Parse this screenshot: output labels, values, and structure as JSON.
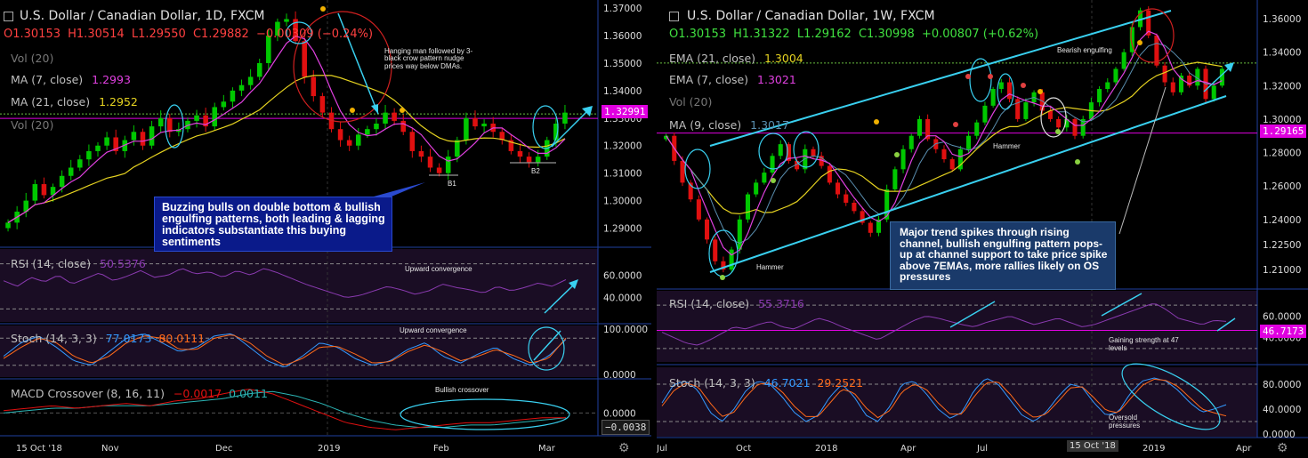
{
  "left": {
    "title": "U.S. Dollar / Canadian Dollar, 1D, FXCM",
    "open": "O1.30153",
    "high": "H1.30514",
    "low": "L1.29550",
    "close": "C1.29882",
    "change": "−0.00309 (−0.24%)",
    "vol_top": "Vol (20)",
    "ma7_label": "MA (7, close)",
    "ma7_value": "1.2993",
    "ma21_label": "MA (21, close)",
    "ma21_value": "1.2952",
    "vol_mid": "Vol (20)",
    "price_ticks": [
      "1.37000",
      "1.36000",
      "1.35000",
      "1.34000",
      "1.33000",
      "1.32000",
      "1.31000",
      "1.30000",
      "1.29000"
    ],
    "current_price": "1.32991",
    "ann_hanging": "Hanging man followed by 3-black crow pattern nudge prices way below DMAs.",
    "ann_b1": "B1",
    "ann_b2": "B2",
    "callout": "Buzzing bulls on double bottom & bullish engulfing patterns, both leading & lagging indicators substantiate this buying sentiments",
    "rsi_label": "RSI (14, close)",
    "rsi_value": "50.5376",
    "rsi_ticks": [
      "60.0000",
      "40.0000"
    ],
    "rsi_ann": "Upward convergence",
    "stoch_label": "Stoch (14, 3, 3)",
    "stoch_k": "77.0173",
    "stoch_d": "80.0111",
    "stoch_ticks": [
      "100.0000",
      "0.0000"
    ],
    "stoch_ann": "Upward convergence",
    "macd_label": "MACD Crossover (8, 16, 11)",
    "macd_v1": "−0.0017",
    "macd_v2": "0.0011",
    "macd_ticks": [
      "0.0000"
    ],
    "macd_value_pill": "−0.0038",
    "macd_ann": "Bullish crossover",
    "date_axis": [
      "15 Oct '18",
      "Nov",
      "Dec",
      "2019",
      "Feb",
      "Mar"
    ]
  },
  "right": {
    "title": "U.S. Dollar / Canadian Dollar, 1W, FXCM",
    "open": "O1.30153",
    "high": "H1.31322",
    "low": "L1.29162",
    "close": "C1.30998",
    "change": "+0.00807 (+0.62%)",
    "ema21_label": "EMA (21, close)",
    "ema21_value": "1.3004",
    "ema7_label": "EMA (7, close)",
    "ema7_value": "1.3021",
    "vol_label": "Vol (20)",
    "ma9_label": "MA (9, close)",
    "ma9_value": "1.3017",
    "price_ticks": [
      "1.36000",
      "1.34000",
      "1.32000",
      "1.30000",
      "1.28000",
      "1.26000",
      "1.24000",
      "1.22500",
      "1.21000"
    ],
    "current_price": "1.29165",
    "ann_bearish": "Bearish engulfing",
    "ann_hammer1": "Hammer",
    "ann_hammer2": "Hammer",
    "callout": "Major trend spikes through rising channel, bullish engulfing pattern pops-up at channel support to take price spike above 7EMAs, more rallies likely on OS pressures",
    "rsi_label": "RSI (14, close)",
    "rsi_value": "55.3716",
    "rsi_ticks": [
      "60.0000",
      "40.0000"
    ],
    "rsi_pill": "46.7173",
    "rsi_ann": "Gaining strength at 47 levels",
    "stoch_label": "Stoch (14, 3, 3)",
    "stoch_k": "46.7021",
    "stoch_d": "29.2521",
    "stoch_ticks": [
      "80.0000",
      "40.0000",
      "0.0000"
    ],
    "stoch_ann": "Oversold pressures",
    "date_axis": [
      "Jul",
      "Oct",
      "2018",
      "Apr",
      "Jul",
      "15 Oct '18",
      "2019",
      "Apr"
    ]
  },
  "colors": {
    "bull": "#00c800",
    "bear": "#e01010",
    "ma_yellow": "#e5d220",
    "ma_magenta": "#e040e0",
    "cyan": "#39d0f0",
    "rsi_line": "#8a3ab0",
    "stoch_k": "#3399ff",
    "stoch_d": "#ff6a1a",
    "macd_1": "#e01010",
    "macd_2": "#2bb3b3",
    "support": "#e000e0",
    "callout_bg": "#0a1a8a",
    "callout_bg_right": "#1a3a6a"
  },
  "chart_data": [
    {
      "type": "candlestick",
      "title": "U.S. Dollar / Canadian Dollar, 1D, FXCM",
      "ylim": [
        1.285,
        1.371
      ],
      "x": [
        "15 Oct '18",
        "Nov",
        "Dec",
        "2019",
        "Feb",
        "Mar"
      ],
      "series": [
        {
          "name": "MA (7, close)",
          "last": 1.2993
        },
        {
          "name": "MA (21, close)",
          "last": 1.2952
        }
      ],
      "close_path": [
        1.292,
        1.296,
        1.3,
        1.306,
        1.302,
        1.305,
        1.309,
        1.312,
        1.315,
        1.318,
        1.32,
        1.323,
        1.318,
        1.322,
        1.325,
        1.32,
        1.327,
        1.33,
        1.325,
        1.326,
        1.329,
        1.331,
        1.327,
        1.334,
        1.336,
        1.34,
        1.342,
        1.345,
        1.35,
        1.36,
        1.365,
        1.366,
        1.358,
        1.345,
        1.338,
        1.332,
        1.326,
        1.322,
        1.32,
        1.324,
        1.326,
        1.328,
        1.332,
        1.329,
        1.325,
        1.318,
        1.316,
        1.312,
        1.31,
        1.316,
        1.322,
        1.33,
        1.327,
        1.328,
        1.325,
        1.322,
        1.318,
        1.316,
        1.314,
        1.316,
        1.322,
        1.328,
        1.332
      ],
      "current_price": 1.32991,
      "support_level": 1.3299
    },
    {
      "type": "line",
      "title": "RSI (14, close)",
      "ylim": [
        20,
        80
      ],
      "values": [
        55,
        50,
        58,
        54,
        60,
        52,
        57,
        62,
        55,
        59,
        64,
        58,
        60,
        66,
        61,
        63,
        58,
        64,
        60,
        66,
        62,
        57,
        52,
        48,
        44,
        40,
        42,
        46,
        50,
        47,
        43,
        46,
        52,
        49,
        47,
        44,
        50,
        46,
        49,
        53,
        50,
        56
      ],
      "last": 50.5376
    },
    {
      "type": "line",
      "title": "Stoch (14, 3, 3)",
      "ylim": [
        0,
        100
      ],
      "series": [
        {
          "name": "%K",
          "values": [
            40,
            70,
            85,
            60,
            30,
            20,
            50,
            80,
            90,
            70,
            50,
            60,
            85,
            90,
            60,
            30,
            15,
            40,
            70,
            60,
            35,
            20,
            30,
            55,
            70,
            40,
            25,
            45,
            60,
            35,
            20,
            40,
            77
          ]
        },
        {
          "name": "%D",
          "values": [
            35,
            60,
            80,
            70,
            40,
            25,
            40,
            70,
            85,
            80,
            55,
            55,
            80,
            88,
            70,
            40,
            20,
            35,
            60,
            62,
            45,
            25,
            28,
            50,
            65,
            50,
            30,
            40,
            55,
            42,
            25,
            35,
            80
          ]
        }
      ],
      "last_k": 77.0173,
      "last_d": 80.0111
    },
    {
      "type": "line",
      "title": "MACD Crossover (8, 16, 11)",
      "series": [
        {
          "name": "MACD",
          "values": [
            0.001,
            0.002,
            0.003,
            0.002,
            0.003,
            0.004,
            0.003,
            0.005,
            0.006,
            0.008,
            0.01,
            0.008,
            0.004,
            0.0,
            -0.004,
            -0.006,
            -0.007,
            -0.006,
            -0.005,
            -0.004,
            -0.004,
            -0.003,
            -0.002,
            -0.002
          ]
        },
        {
          "name": "Signal",
          "values": [
            0.0,
            0.001,
            0.002,
            0.002,
            0.003,
            0.003,
            0.003,
            0.004,
            0.005,
            0.006,
            0.008,
            0.009,
            0.007,
            0.004,
            0.0,
            -0.003,
            -0.005,
            -0.006,
            -0.006,
            -0.005,
            -0.005,
            -0.004,
            -0.003,
            -0.002
          ]
        }
      ],
      "last_macd": -0.0017,
      "last_signal": 0.0011
    },
    {
      "type": "candlestick",
      "title": "U.S. Dollar / Canadian Dollar, 1W, FXCM",
      "ylim": [
        1.2,
        1.368
      ],
      "x": [
        "Jul",
        "Oct",
        "2018",
        "Apr",
        "Jul",
        "15 Oct '18",
        "2019",
        "Apr"
      ],
      "series": [
        {
          "name": "EMA (21, close)",
          "last": 1.3004
        },
        {
          "name": "EMA (7, close)",
          "last": 1.3021
        },
        {
          "name": "MA (9, close)",
          "last": 1.3017
        }
      ],
      "close_path": [
        1.29,
        1.275,
        1.262,
        1.252,
        1.24,
        1.228,
        1.215,
        1.21,
        1.222,
        1.24,
        1.255,
        1.262,
        1.268,
        1.278,
        1.285,
        1.275,
        1.27,
        1.282,
        1.278,
        1.272,
        1.262,
        1.255,
        1.25,
        1.245,
        1.238,
        1.232,
        1.24,
        1.258,
        1.27,
        1.282,
        1.29,
        1.3,
        1.288,
        1.282,
        1.276,
        1.27,
        1.282,
        1.29,
        1.298,
        1.308,
        1.318,
        1.322,
        1.312,
        1.3,
        1.31,
        1.316,
        1.305,
        1.3,
        1.295,
        1.3,
        1.29,
        1.3,
        1.31,
        1.318,
        1.322,
        1.33,
        1.34,
        1.355,
        1.365,
        1.35,
        1.332,
        1.322,
        1.316,
        1.326,
        1.32,
        1.33,
        1.312,
        1.32,
        1.33
      ],
      "current_price": 1.29165
    },
    {
      "type": "line",
      "title": "RSI (14, close)",
      "ylim": [
        20,
        80
      ],
      "values": [
        45,
        40,
        35,
        33,
        38,
        44,
        50,
        48,
        52,
        55,
        50,
        48,
        53,
        58,
        55,
        50,
        46,
        42,
        38,
        44,
        50,
        56,
        60,
        58,
        55,
        52,
        50,
        54,
        57,
        60,
        56,
        52,
        55,
        58,
        54,
        50,
        52,
        56,
        60,
        64,
        68,
        72,
        66,
        58,
        55,
        52,
        56,
        55
      ],
      "last": 55.3716
    },
    {
      "type": "line",
      "title": "Stoch (14, 3, 3)",
      "ylim": [
        0,
        100
      ],
      "series": [
        {
          "name": "%K",
          "values": [
            50,
            80,
            85,
            70,
            35,
            20,
            40,
            70,
            85,
            80,
            60,
            35,
            20,
            30,
            60,
            80,
            60,
            30,
            20,
            45,
            80,
            85,
            65,
            40,
            25,
            35,
            70,
            90,
            80,
            55,
            30,
            20,
            35,
            60,
            80,
            75,
            50,
            30,
            35,
            65,
            85,
            90,
            85,
            70,
            50,
            35,
            40,
            47
          ]
        },
        {
          "name": "%D",
          "values": [
            45,
            70,
            82,
            76,
            50,
            28,
            35,
            60,
            80,
            82,
            68,
            45,
            28,
            28,
            50,
            72,
            66,
            42,
            26,
            38,
            68,
            80,
            72,
            50,
            32,
            32,
            60,
            82,
            84,
            64,
            40,
            26,
            32,
            52,
            74,
            76,
            58,
            38,
            34,
            56,
            78,
            88,
            86,
            76,
            58,
            40,
            34,
            29
          ]
        }
      ],
      "last_k": 46.7021,
      "last_d": 29.2521
    }
  ]
}
